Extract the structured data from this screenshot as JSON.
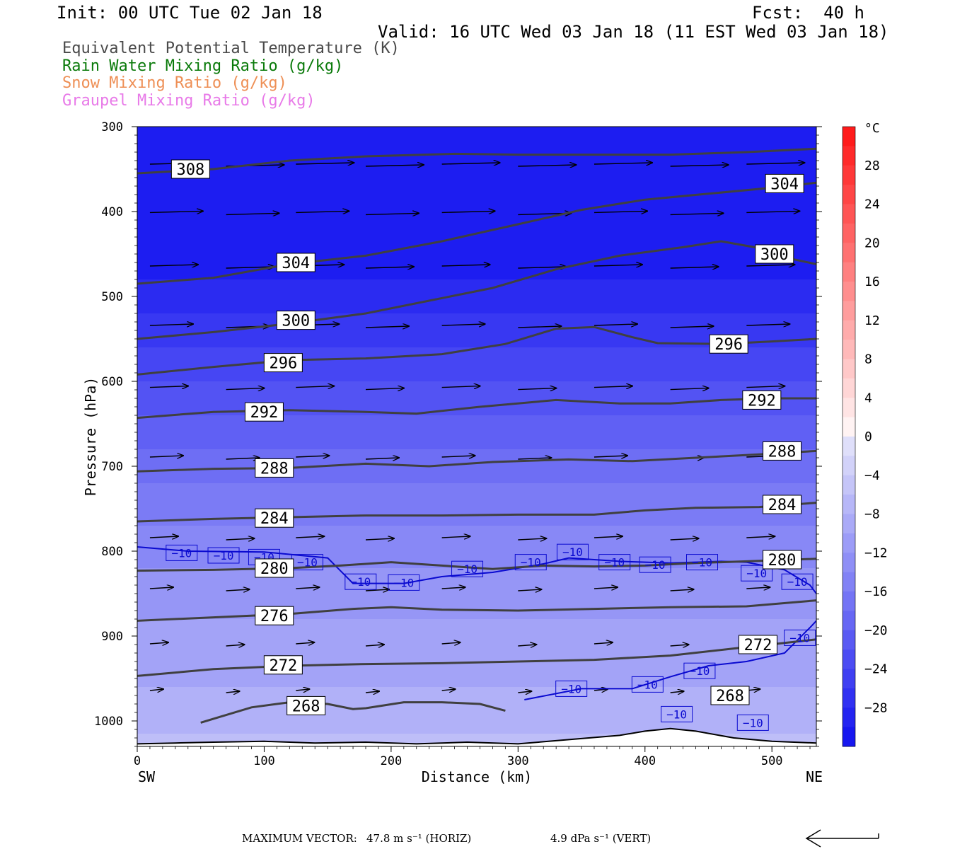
{
  "header": {
    "init": "Init: 00 UTC Tue 02 Jan 18",
    "fcst": "Fcst:  40 h",
    "valid": "Valid: 16 UTC Wed 03 Jan 18 (11 EST Wed 03 Jan 18)"
  },
  "legend": [
    {
      "label": "Equivalent Potential Temperature (K)",
      "color": "#4a4a4a"
    },
    {
      "label": "Rain Water Mixing Ratio (g/kg)",
      "color": "#0a7a0a"
    },
    {
      "label": "Snow Mixing Ratio (g/kg)",
      "color": "#ee8f55"
    },
    {
      "label": "Graupel Mixing Ratio (g/kg)",
      "color": "#e87ae8"
    }
  ],
  "footer": {
    "max_vector_label": "MAXIMUM VECTOR:",
    "horiz": "47.8 m s⁻¹ (HORIZ)",
    "vert": "4.9 dPa s⁻¹ (VERT)"
  },
  "chart_data": {
    "type": "cross-section contour",
    "xlabel": "Distance (km)",
    "ylabel": "Pressure (hPa)",
    "xlim": [
      0,
      535
    ],
    "ylim": [
      1030,
      300
    ],
    "x_ticks": [
      0,
      100,
      200,
      300,
      400,
      500
    ],
    "y_ticks": [
      300,
      400,
      500,
      600,
      700,
      800,
      900,
      1000
    ],
    "x_end_labels": {
      "left": "SW",
      "right": "NE"
    },
    "colorbar": {
      "unit": "°C",
      "tick_labels": [
        "28",
        "24",
        "20",
        "16",
        "12",
        "8",
        "4",
        "0",
        "−4",
        "−8",
        "−12",
        "−16",
        "−20",
        "−24",
        "−28"
      ],
      "tick_values": [
        28,
        24,
        20,
        16,
        12,
        8,
        4,
        0,
        -4,
        -8,
        -12,
        -16,
        -20,
        -24,
        -28
      ],
      "range": [
        -32,
        32
      ],
      "cold_color": "#1010f0",
      "warm_color": "#ff1010"
    },
    "temperature_fill_bands": [
      {
        "upper_hPa": 300,
        "temp_c": -30
      },
      {
        "upper_hPa": 480,
        "temp_c": -28
      },
      {
        "upper_hPa": 520,
        "temp_c": -26
      },
      {
        "upper_hPa": 560,
        "temp_c": -24
      },
      {
        "upper_hPa": 600,
        "temp_c": -22
      },
      {
        "upper_hPa": 640,
        "temp_c": -20
      },
      {
        "upper_hPa": 680,
        "temp_c": -18
      },
      {
        "upper_hPa": 720,
        "temp_c": -16
      },
      {
        "upper_hPa": 770,
        "temp_c": -14
      },
      {
        "upper_hPa": 820,
        "temp_c": -12
      },
      {
        "upper_hPa": 880,
        "temp_c": -10
      },
      {
        "upper_hPa": 960,
        "temp_c": -8
      },
      {
        "upper_hPa": 1015,
        "temp_c": -6
      }
    ],
    "theta_e_contours": [
      {
        "value": 308,
        "label": "308",
        "points": [
          [
            0,
            355
          ],
          [
            60,
            350
          ],
          [
            120,
            340
          ],
          [
            180,
            335
          ],
          [
            250,
            332
          ],
          [
            300,
            333
          ],
          [
            360,
            333
          ],
          [
            420,
            333
          ],
          [
            480,
            330
          ],
          [
            535,
            326
          ]
        ],
        "label_at": [
          42,
          350
        ]
      },
      {
        "value": 304,
        "label": "304",
        "points": [
          [
            0,
            485
          ],
          [
            60,
            478
          ],
          [
            120,
            462
          ],
          [
            180,
            452
          ],
          [
            240,
            435
          ],
          [
            300,
            415
          ],
          [
            350,
            398
          ],
          [
            400,
            386
          ],
          [
            450,
            379
          ],
          [
            500,
            372
          ],
          [
            535,
            366
          ]
        ],
        "label_at": [
          125,
          460
        ],
        "label2": "304",
        "label2_at": [
          510,
          367
        ]
      },
      {
        "value": 300,
        "label": "300",
        "points": [
          [
            0,
            550
          ],
          [
            60,
            542
          ],
          [
            120,
            532
          ],
          [
            180,
            520
          ],
          [
            230,
            505
          ],
          [
            280,
            490
          ],
          [
            330,
            468
          ],
          [
            380,
            452
          ],
          [
            430,
            442
          ],
          [
            460,
            435
          ],
          [
            490,
            443
          ],
          [
            510,
            454
          ],
          [
            535,
            462
          ]
        ],
        "label_at": [
          125,
          528
        ],
        "label2": "300",
        "label2_at": [
          502,
          450
        ]
      },
      {
        "value": 296,
        "label": "296",
        "points": [
          [
            0,
            592
          ],
          [
            60,
            583
          ],
          [
            120,
            575
          ],
          [
            180,
            573
          ],
          [
            240,
            568
          ],
          [
            290,
            556
          ],
          [
            330,
            538
          ],
          [
            360,
            536
          ],
          [
            390,
            548
          ],
          [
            410,
            555
          ],
          [
            460,
            556
          ],
          [
            500,
            553
          ],
          [
            535,
            550
          ]
        ],
        "label_at": [
          115,
          578
        ],
        "label2": "296",
        "label2_at": [
          466,
          556
        ]
      },
      {
        "value": 292,
        "label": "292",
        "points": [
          [
            0,
            643
          ],
          [
            60,
            636
          ],
          [
            120,
            634
          ],
          [
            180,
            636
          ],
          [
            220,
            638
          ],
          [
            270,
            630
          ],
          [
            330,
            622
          ],
          [
            380,
            626
          ],
          [
            420,
            626
          ],
          [
            460,
            622
          ],
          [
            500,
            620
          ],
          [
            535,
            620
          ]
        ],
        "label_at": [
          100,
          636
        ],
        "label2": "292",
        "label2_at": [
          492,
          622
        ]
      },
      {
        "value": 288,
        "label": "288",
        "points": [
          [
            0,
            706
          ],
          [
            60,
            703
          ],
          [
            120,
            702
          ],
          [
            180,
            697
          ],
          [
            230,
            700
          ],
          [
            280,
            695
          ],
          [
            340,
            692
          ],
          [
            390,
            694
          ],
          [
            440,
            690
          ],
          [
            490,
            686
          ],
          [
            535,
            682
          ]
        ],
        "label_at": [
          108,
          702
        ],
        "label2": "288",
        "label2_at": [
          508,
          682
        ]
      },
      {
        "value": 284,
        "label": "284",
        "points": [
          [
            0,
            765
          ],
          [
            60,
            762
          ],
          [
            120,
            760
          ],
          [
            180,
            758
          ],
          [
            240,
            758
          ],
          [
            300,
            757
          ],
          [
            360,
            757
          ],
          [
            400,
            752
          ],
          [
            440,
            749
          ],
          [
            490,
            748
          ],
          [
            535,
            743
          ]
        ],
        "label_at": [
          108,
          761
        ],
        "label2": "284",
        "label2_at": [
          508,
          745
        ]
      },
      {
        "value": 280,
        "label": "280",
        "points": [
          [
            0,
            823
          ],
          [
            60,
            822
          ],
          [
            120,
            820
          ],
          [
            160,
            817
          ],
          [
            200,
            813
          ],
          [
            240,
            817
          ],
          [
            280,
            821
          ],
          [
            320,
            817
          ],
          [
            360,
            818
          ],
          [
            400,
            817
          ],
          [
            440,
            814
          ],
          [
            480,
            812
          ],
          [
            535,
            809
          ]
        ],
        "label_at": [
          108,
          820
        ],
        "label2": "280",
        "label2_at": [
          508,
          810
        ]
      },
      {
        "value": 276,
        "label": "276",
        "points": [
          [
            0,
            882
          ],
          [
            60,
            878
          ],
          [
            120,
            874
          ],
          [
            170,
            868
          ],
          [
            200,
            866
          ],
          [
            240,
            869
          ],
          [
            300,
            870
          ],
          [
            360,
            868
          ],
          [
            420,
            866
          ],
          [
            480,
            865
          ],
          [
            535,
            858
          ]
        ],
        "label_at": [
          108,
          876
        ]
      },
      {
        "value": 272,
        "label": "272",
        "points": [
          [
            0,
            947
          ],
          [
            60,
            939
          ],
          [
            120,
            935
          ],
          [
            180,
            933
          ],
          [
            240,
            932
          ],
          [
            300,
            930
          ],
          [
            360,
            928
          ],
          [
            420,
            923
          ],
          [
            480,
            913
          ],
          [
            535,
            904
          ]
        ],
        "label_at": [
          115,
          934
        ],
        "label2": "272",
        "label2_at": [
          489,
          910
        ]
      },
      {
        "value": 268,
        "label": "268",
        "points": [
          [
            50,
            1002
          ],
          [
            90,
            984
          ],
          [
            120,
            978
          ],
          [
            150,
            980
          ],
          [
            170,
            986
          ],
          [
            180,
            985
          ],
          [
            210,
            978
          ],
          [
            240,
            978
          ],
          [
            270,
            980
          ],
          [
            290,
            988
          ]
        ],
        "label_at": [
          133,
          982
        ],
        "label2": "268",
        "label2_at": [
          467,
          970
        ]
      }
    ],
    "temperature_minus10_line": {
      "label": "−10",
      "points": [
        [
          0,
          795
        ],
        [
          40,
          800
        ],
        [
          100,
          801
        ],
        [
          150,
          808
        ],
        [
          170,
          838
        ],
        [
          210,
          838
        ],
        [
          240,
          830
        ],
        [
          280,
          825
        ],
        [
          300,
          820
        ],
        [
          320,
          815
        ],
        [
          340,
          808
        ],
        [
          380,
          812
        ],
        [
          420,
          814
        ],
        [
          460,
          812
        ],
        [
          480,
          813
        ],
        [
          510,
          822
        ],
        [
          530,
          840
        ],
        [
          535,
          850
        ]
      ],
      "labels_at": [
        [
          35,
          802
        ],
        [
          68,
          805
        ],
        [
          100,
          807
        ],
        [
          134,
          813
        ],
        [
          176,
          836
        ],
        [
          210,
          837
        ],
        [
          260,
          821
        ],
        [
          310,
          813
        ],
        [
          343,
          801
        ],
        [
          376,
          813
        ],
        [
          408,
          816
        ],
        [
          445,
          813
        ],
        [
          488,
          826
        ],
        [
          520,
          836
        ]
      ]
    },
    "temperature_minus10_lower": {
      "label": "−10",
      "points": [
        [
          305,
          975
        ],
        [
          350,
          962
        ],
        [
          390,
          962
        ],
        [
          420,
          948
        ],
        [
          450,
          935
        ],
        [
          480,
          930
        ],
        [
          510,
          920
        ],
        [
          530,
          890
        ],
        [
          535,
          882
        ]
      ],
      "labels_at": [
        [
          342,
          962
        ],
        [
          402,
          957
        ],
        [
          443,
          941
        ],
        [
          522,
          902
        ],
        [
          425,
          992
        ],
        [
          485,
          1002
        ]
      ]
    },
    "wind_vector_rows_hPa": [
      345,
      402,
      465,
      535,
      608,
      690,
      785,
      845,
      910,
      965
    ],
    "wind_vector_x_km": [
      10,
      70,
      125,
      180,
      240,
      300,
      360,
      420,
      480
    ],
    "terrain_surface_hPa": [
      [
        0,
        1027
      ],
      [
        30,
        1026
      ],
      [
        60,
        1025
      ],
      [
        100,
        1024
      ],
      [
        140,
        1026
      ],
      [
        180,
        1025
      ],
      [
        220,
        1027
      ],
      [
        260,
        1025
      ],
      [
        300,
        1027
      ],
      [
        340,
        1022
      ],
      [
        380,
        1017
      ],
      [
        400,
        1012
      ],
      [
        420,
        1009
      ],
      [
        440,
        1012
      ],
      [
        470,
        1020
      ],
      [
        500,
        1024
      ],
      [
        535,
        1026
      ]
    ]
  }
}
